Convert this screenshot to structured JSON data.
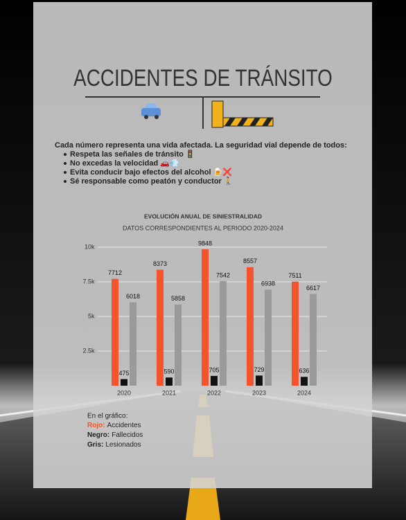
{
  "header": {
    "title": "ACCIDENTES DE TRÁNSITO"
  },
  "intro": {
    "text": "Cada número representa una vida afectada. La seguridad vial depende de todos:",
    "bullets": [
      "Respeta las señales de tránsito 🚦",
      "No excedas la velocidad 🚗💨",
      "Evita conducir bajo efectos del alcohol 🍺❌",
      "Sé responsable como peatón y conductor 🚶"
    ]
  },
  "chart_data": {
    "type": "bar",
    "title": "EVOLUCIÓN ANUAL DE SINIESTRALIDAD",
    "subtitle": "DATOS CORRESPONDIENTES AL PERIODO 2020-2024",
    "categories": [
      "2020",
      "2021",
      "2022",
      "2023",
      "2024"
    ],
    "series": [
      {
        "name": "Accidentes",
        "color_label": "Rojo:",
        "color": "#f4532b",
        "values": [
          7712,
          8373,
          9848,
          8557,
          7511
        ]
      },
      {
        "name": "Fallecidos",
        "color_label": "Negro:",
        "color": "#111111",
        "values": [
          475,
          590,
          705,
          729,
          636
        ]
      },
      {
        "name": "Lesionados",
        "color_label": "Gris:",
        "color": "#9a9a9a",
        "values": [
          6018,
          5858,
          7542,
          6938,
          6617
        ]
      }
    ],
    "ylim": [
      0,
      10000
    ],
    "yticks": [
      {
        "value": 2500,
        "label": "2.5k"
      },
      {
        "value": 5000,
        "label": "5k"
      },
      {
        "value": 7500,
        "label": "7.5k"
      },
      {
        "value": 10000,
        "label": "10k"
      }
    ],
    "grid": true,
    "legend_title": "En el gráfico:"
  }
}
